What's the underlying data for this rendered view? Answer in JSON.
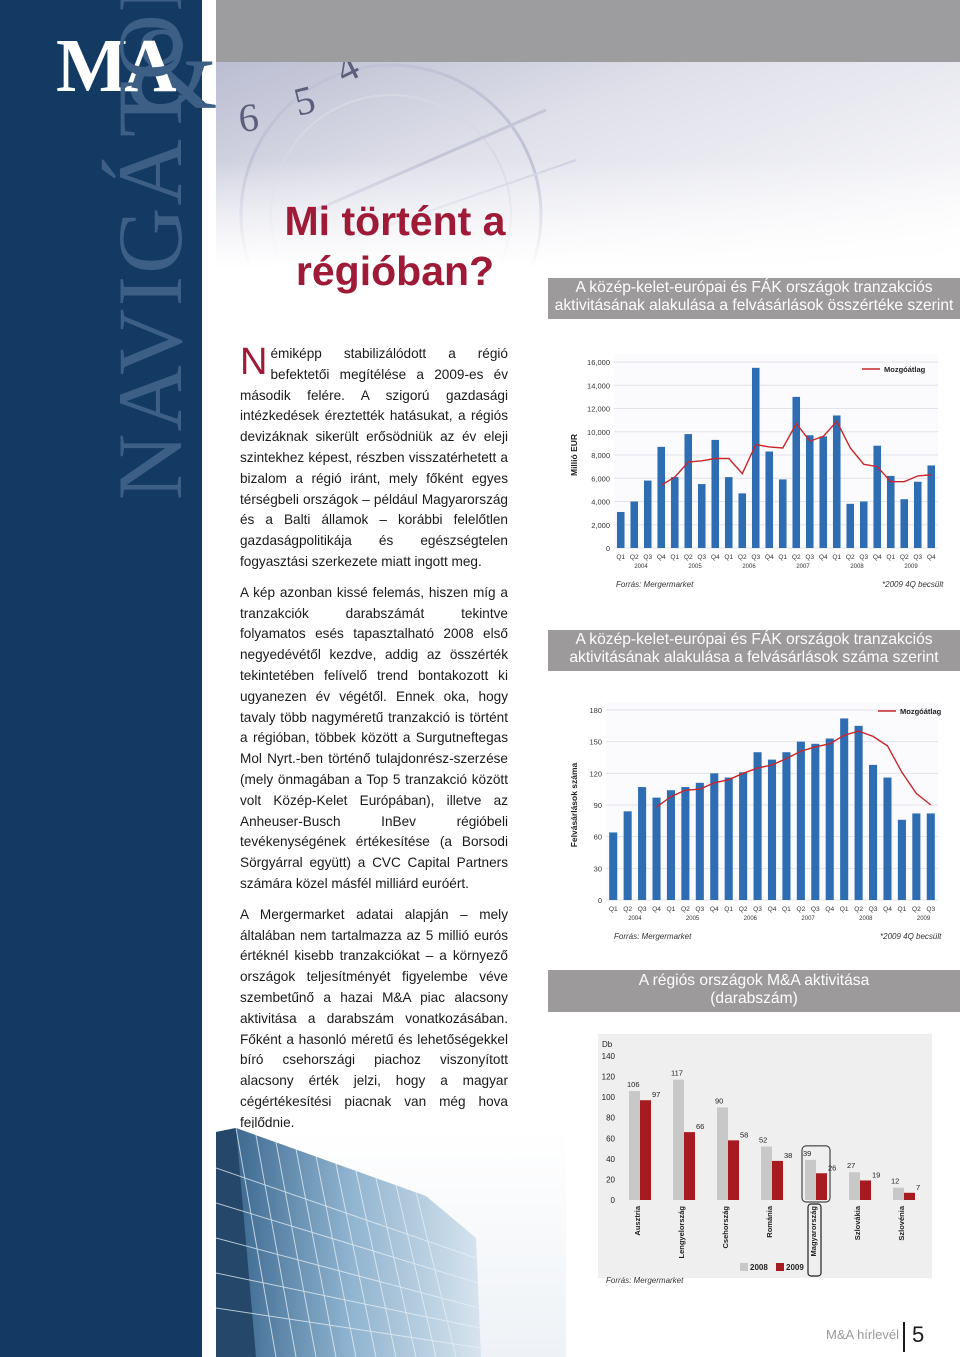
{
  "brand": {
    "logo_letters": "MA",
    "ampersand": "&",
    "vertical_title": "NAVIGÁTOR"
  },
  "header": {
    "clock_digits": [
      "6",
      "5",
      "4"
    ]
  },
  "title": {
    "line1": "Mi történt a",
    "line2": "régióban?"
  },
  "article": {
    "dropcap": "N",
    "paragraphs": [
      "émiképp stabilizálódott a régió befektetői megítélése a 2009-es év második felére. A szigorú gazdasági intézkedések éreztették hatásukat, a régiós devizáknak sikerült erősödniük az év eleji szintekhez képest, részben visszatérhetett a bizalom a régió iránt, mely főként egyes térségbeli országok – például Magyarország és a Balti államok – korábbi felelőtlen gazdaságpolitikája és egészségtelen fogyasztási szerkezete miatt ingott meg.",
      "A kép azonban kissé felemás, hiszen míg a tranzakciók darabszámát tekintve folyamatos esés tapasztalható 2008 első negyedévétől kezdve, addig az összérték tekintetében felívelő trend bontakozott ki ugyanezen év végétől. Ennek oka, hogy tavaly több nagyméretű tranzakció is történt a régióban, többek között a Surgutneftegas Mol Nyrt.-ben történő tulajdonrész-szerzése (mely önmagában a Top 5 tranzakció között volt Közép-Kelet Európában), illetve az Anheuser-Busch InBev régióbeli tevékenységének értékesítése (a Borsodi Sörgyárral együtt) a CVC Capital Partners számára közel másfél milliárd euróért.",
      "A Mergermarket adatai alapján – mely általában nem tartalmazza az 5 millió eurós értéknél kisebb tranzakciókat – a környező országok teljesítményét figyelembe véve szembetűnő a hazai M&A piac alacsony aktivitása a darabszám vonatkozásában. Főként a hasonló méretű és lehetőségekkel bíró csehországi piachoz viszonyított alacsony érték jelzi, hogy a magyar cégértékesítési piacnak van még hova fejlődnie."
    ]
  },
  "headings": {
    "chart1": [
      "A közép-kelet-európai és FÁK országok tranzakciós",
      "aktivitásának alakulása a felvásárlások összértéke szerint"
    ],
    "chart2": [
      "A közép-kelet-európai és FÁK országok tranzakciós",
      "aktivitásának alakulása a felvásárlások száma szerint"
    ],
    "chart3": [
      "A régiós országok M&A aktivitása",
      "(darabszám)"
    ]
  },
  "sources": {
    "chart1_source": "Forrás: Mergermarket",
    "chart1_note": "*2009 4Q becsült",
    "chart2_source": "Forrás: Mergermarket",
    "chart2_note": "*2009 4Q becsült",
    "chart3_source": "Forrás: Mergermarket"
  },
  "footer": {
    "label": "M&A hírlevél",
    "page": "5"
  },
  "chart_data": [
    {
      "type": "bar",
      "ylabel": "Millió EUR",
      "ylim": [
        0,
        16000
      ],
      "yticks": [
        0,
        2000,
        4000,
        6000,
        8000,
        10000,
        12000,
        14000,
        16000
      ],
      "ytick_labels": [
        "0",
        "2,000",
        "4,000",
        "6,000",
        "8,000",
        "10,000",
        "12,000",
        "14,000",
        "16,000"
      ],
      "categories": [
        "Q1",
        "Q2",
        "Q3",
        "Q4",
        "Q1",
        "Q2",
        "Q3",
        "Q4",
        "Q1",
        "Q2",
        "Q3",
        "Q4",
        "Q1",
        "Q2",
        "Q3",
        "Q4",
        "Q1",
        "Q2",
        "Q3",
        "Q4",
        "Q1",
        "Q2",
        "Q3",
        "Q4"
      ],
      "year_labels": [
        "2004",
        "2005",
        "2006",
        "2007",
        "2008",
        "2009"
      ],
      "series": [
        {
          "values": [
            3100,
            4000,
            5800,
            8700,
            6100,
            9800,
            5500,
            9300,
            6100,
            4700,
            15500,
            8300,
            5900,
            13000,
            9700,
            9600,
            11400,
            3800,
            4000,
            8800,
            6200,
            4200,
            5700,
            7100
          ]
        },
        {
          "name": "Mozgóátlag",
          "type": "line",
          "values": [
            null,
            null,
            null,
            5400,
            6100,
            7400,
            7500,
            7700,
            7700,
            6400,
            8900,
            8700,
            8600,
            10700,
            9200,
            9600,
            10900,
            8600,
            7200,
            7000,
            5700,
            5700,
            6200,
            6300
          ]
        }
      ],
      "bar_color": "#2f6db3",
      "line_color": "#c8262b"
    },
    {
      "type": "bar",
      "ylabel": "Felvásárlások száma",
      "ylim": [
        0,
        180
      ],
      "yticks": [
        0,
        30,
        60,
        90,
        120,
        150,
        180
      ],
      "ytick_labels": [
        "0",
        "30",
        "60",
        "90",
        "120",
        "150",
        "180"
      ],
      "categories": [
        "Q1",
        "Q2",
        "Q3",
        "Q4",
        "Q1",
        "Q2",
        "Q3",
        "Q4",
        "Q1",
        "Q2",
        "Q3",
        "Q4",
        "Q1",
        "Q2",
        "Q3",
        "Q4",
        "Q1",
        "Q2",
        "Q3",
        "Q4",
        "Q1",
        "Q2",
        "Q3"
      ],
      "year_labels": [
        "2004",
        "2005",
        "2006",
        "2007",
        "2008",
        "2009"
      ],
      "series": [
        {
          "values": [
            64,
            84,
            107,
            97,
            104,
            107,
            111,
            120,
            116,
            121,
            140,
            133,
            140,
            150,
            148,
            153,
            172,
            165,
            128,
            116,
            76,
            82,
            82
          ]
        },
        {
          "name": "Mozgóátlag",
          "type": "line",
          "values": [
            null,
            null,
            null,
            88,
            98,
            104,
            105,
            111,
            114,
            120,
            125,
            128,
            134,
            141,
            145,
            148,
            156,
            160,
            155,
            146,
            121,
            101,
            90
          ]
        }
      ],
      "bar_color": "#2f6db3",
      "line_color": "#c8262b"
    },
    {
      "type": "bar",
      "ylabel": "Db",
      "ylim": [
        0,
        140
      ],
      "yticks": [
        0,
        20,
        40,
        60,
        80,
        100,
        120,
        140
      ],
      "ytick_labels": [
        "0",
        "20",
        "40",
        "60",
        "80",
        "100",
        "120",
        "140"
      ],
      "categories": [
        "Ausztria",
        "Lengyelország",
        "Csehország",
        "Románia",
        "Magyarország",
        "Szlovákia",
        "Szlovénia"
      ],
      "series": [
        {
          "name": "2008",
          "values": [
            106,
            117,
            90,
            52,
            39,
            27,
            12
          ]
        },
        {
          "name": "2009",
          "values": [
            97,
            66,
            58,
            38,
            26,
            19,
            7
          ]
        }
      ],
      "colors": [
        "#c9c8c8",
        "#a51b1f"
      ],
      "highlight_category": "Magyarország"
    }
  ]
}
